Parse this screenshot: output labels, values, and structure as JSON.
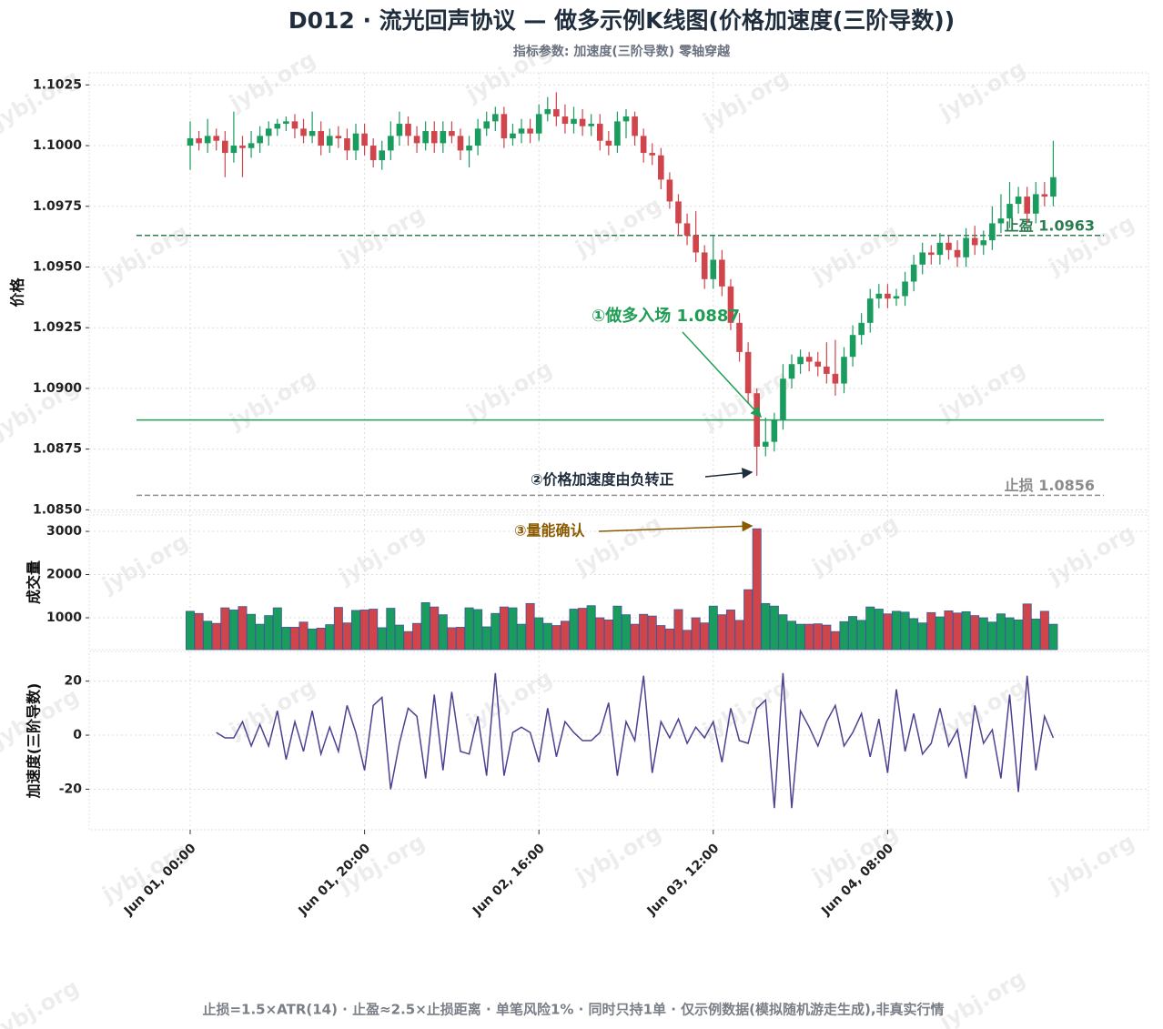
{
  "chart_data": [
    {
      "type": "candlestick",
      "title": "D012 · 流光回声协议 — 做多示例K线图(价格加速度(三阶导数))",
      "subtitle": "指标参数: 加速度(三阶导数) 零轴穿越",
      "footnote": "止损=1.5×ATR(14) · 止盈≈2.5×止损距离 · 单笔风险1% · 同时只持1单 · 仅示例数据(模拟随机游走生成),非真实行情",
      "watermark": "jybj.org",
      "ylabel": "价格",
      "x": [
        "Jun 01, 00:00",
        "Jun 01, 01:00",
        "Jun 01, 02:00",
        "Jun 01, 03:00",
        "Jun 01, 04:00",
        "Jun 01, 05:00",
        "Jun 01, 06:00",
        "Jun 01, 07:00",
        "Jun 01, 08:00",
        "Jun 01, 09:00",
        "Jun 01, 10:00",
        "Jun 01, 11:00",
        "Jun 01, 12:00",
        "Jun 01, 13:00",
        "Jun 01, 14:00",
        "Jun 01, 15:00",
        "Jun 01, 16:00",
        "Jun 01, 17:00",
        "Jun 01, 18:00",
        "Jun 01, 19:00",
        "Jun 01, 20:00",
        "Jun 01, 21:00",
        "Jun 01, 22:00",
        "Jun 01, 23:00",
        "Jun 02, 00:00",
        "Jun 02, 01:00",
        "Jun 02, 02:00",
        "Jun 02, 03:00",
        "Jun 02, 04:00",
        "Jun 02, 05:00",
        "Jun 02, 06:00",
        "Jun 02, 07:00",
        "Jun 02, 08:00",
        "Jun 02, 09:00",
        "Jun 02, 10:00",
        "Jun 02, 11:00",
        "Jun 02, 12:00",
        "Jun 02, 13:00",
        "Jun 02, 14:00",
        "Jun 02, 15:00",
        "Jun 02, 16:00",
        "Jun 02, 17:00",
        "Jun 02, 18:00",
        "Jun 02, 19:00",
        "Jun 02, 20:00",
        "Jun 02, 21:00",
        "Jun 02, 22:00",
        "Jun 02, 23:00",
        "Jun 03, 00:00",
        "Jun 03, 01:00",
        "Jun 03, 02:00",
        "Jun 03, 03:00",
        "Jun 03, 04:00",
        "Jun 03, 05:00",
        "Jun 03, 06:00",
        "Jun 03, 07:00",
        "Jun 03, 08:00",
        "Jun 03, 09:00",
        "Jun 03, 10:00",
        "Jun 03, 11:00",
        "Jun 03, 12:00",
        "Jun 03, 13:00",
        "Jun 03, 14:00",
        "Jun 03, 15:00",
        "Jun 03, 16:00",
        "Jun 03, 17:00",
        "Jun 03, 18:00",
        "Jun 03, 19:00",
        "Jun 03, 20:00",
        "Jun 03, 21:00",
        "Jun 03, 22:00",
        "Jun 03, 23:00",
        "Jun 04, 00:00",
        "Jun 04, 01:00",
        "Jun 04, 02:00",
        "Jun 04, 03:00",
        "Jun 04, 04:00",
        "Jun 04, 05:00",
        "Jun 04, 06:00",
        "Jun 04, 07:00",
        "Jun 04, 08:00",
        "Jun 04, 09:00",
        "Jun 04, 10:00",
        "Jun 04, 11:00",
        "Jun 04, 12:00",
        "Jun 04, 13:00",
        "Jun 04, 14:00",
        "Jun 04, 15:00",
        "Jun 04, 16:00",
        "Jun 04, 17:00",
        "Jun 04, 18:00",
        "Jun 04, 19:00",
        "Jun 04, 20:00",
        "Jun 04, 21:00",
        "Jun 04, 22:00",
        "Jun 04, 23:00",
        "Jun 05, 00:00",
        "Jun 05, 01:00",
        "Jun 05, 02:00",
        "Jun 05, 03:00"
      ],
      "xticks": [
        "Jun 01, 00:00",
        "Jun 01, 20:00",
        "Jun 02, 16:00",
        "Jun 03, 12:00",
        "Jun 04, 08:00"
      ],
      "open": [
        1.1,
        1.1003,
        1.1001,
        1.1004,
        1.1002,
        1.0997,
        1.1,
        1.0999,
        1.1001,
        1.1004,
        1.1007,
        1.1009,
        1.101,
        1.1007,
        1.1004,
        1.1006,
        1.1,
        1.1004,
        1.1003,
        1.0998,
        1.1005,
        1.1,
        1.0994,
        1.0998,
        1.1004,
        1.1009,
        1.1004,
        1.1001,
        1.1006,
        1.1001,
        1.1006,
        1.1004,
        1.0998,
        1.1,
        1.1007,
        1.101,
        1.1013,
        1.1003,
        1.1005,
        1.1007,
        1.1005,
        1.1013,
        1.1015,
        1.1012,
        1.1009,
        1.1011,
        1.1008,
        1.1009,
        1.1002,
        1.1,
        1.101,
        1.1012,
        1.1004,
        1.0997,
        1.0996,
        1.0986,
        1.0977,
        1.0968,
        1.0963,
        1.0956,
        1.0945,
        1.0953,
        1.0942,
        1.0927,
        1.0915,
        1.0898,
        1.0876,
        1.0878,
        1.0887,
        1.0904,
        1.091,
        1.0913,
        1.0911,
        1.0909,
        1.0906,
        1.0902,
        1.0913,
        1.0922,
        1.0927,
        1.0937,
        1.0939,
        1.0937,
        1.0938,
        1.0944,
        1.0951,
        1.0956,
        1.0955,
        1.096,
        1.0957,
        1.0954,
        1.0962,
        1.0959,
        1.0961,
        1.0968,
        1.097,
        1.0976,
        1.0979,
        1.0972,
        1.098,
        1.0979
      ],
      "high": [
        1.101,
        1.1006,
        1.1011,
        1.1007,
        1.1006,
        1.1014,
        1.1004,
        1.1006,
        1.1008,
        1.101,
        1.1011,
        1.1012,
        1.1013,
        1.1011,
        1.1014,
        1.101,
        1.1007,
        1.1008,
        1.1007,
        1.1009,
        1.1009,
        1.1003,
        1.1002,
        1.101,
        1.1014,
        1.1012,
        1.1008,
        1.101,
        1.101,
        1.101,
        1.101,
        1.1007,
        1.1004,
        1.1011,
        1.1014,
        1.1016,
        1.1016,
        1.1009,
        1.1011,
        1.1011,
        1.1017,
        1.102,
        1.1022,
        1.1017,
        1.1016,
        1.1015,
        1.1013,
        1.1013,
        1.1006,
        1.1014,
        1.1015,
        1.1014,
        1.1007,
        1.1001,
        1.0999,
        1.0989,
        1.098,
        1.0972,
        1.0973,
        1.0959,
        1.0963,
        1.0957,
        1.0945,
        1.0931,
        1.0919,
        1.09,
        1.0888,
        1.089,
        1.091,
        1.0914,
        1.0916,
        1.0915,
        1.0915,
        1.0919,
        1.092,
        1.0917,
        1.0926,
        1.0931,
        1.0941,
        1.0943,
        1.0943,
        1.0941,
        1.0948,
        1.0955,
        1.096,
        1.0959,
        1.0964,
        1.0963,
        1.0961,
        1.0966,
        1.0967,
        1.0965,
        1.0975,
        1.098,
        1.0985,
        1.0983,
        1.0983,
        1.0985,
        1.0985,
        1.1002
      ],
      "low": [
        1.099,
        1.0998,
        1.0997,
        1.0998,
        1.0987,
        1.0993,
        1.0987,
        1.0995,
        1.0997,
        1.1,
        1.1004,
        1.1006,
        1.1003,
        1.1001,
        1.1001,
        1.0996,
        1.0997,
        1.0999,
        1.0994,
        1.0994,
        1.0996,
        1.0991,
        1.099,
        1.0994,
        1.1,
        1.1,
        1.0997,
        1.0998,
        1.0997,
        1.0997,
        1.1001,
        1.0994,
        1.0991,
        1.0996,
        1.1004,
        1.1006,
        1.0999,
        1.1,
        1.1001,
        1.1001,
        1.1002,
        1.101,
        1.1008,
        1.1005,
        1.1005,
        1.1004,
        1.1004,
        1.0998,
        1.0996,
        1.0997,
        1.1003,
        1.1,
        1.0993,
        1.0992,
        1.0982,
        1.0974,
        1.0963,
        1.0959,
        1.0952,
        1.0941,
        1.0941,
        1.0938,
        1.0924,
        1.0911,
        1.0894,
        1.0864,
        1.0872,
        1.0874,
        1.0883,
        1.09,
        1.0906,
        1.0907,
        1.0905,
        1.0902,
        1.0897,
        1.0898,
        1.0909,
        1.0918,
        1.0923,
        1.0933,
        1.0933,
        1.0934,
        1.0934,
        1.094,
        1.0947,
        1.0951,
        1.0951,
        1.0953,
        1.095,
        1.095,
        1.0955,
        1.0955,
        1.0957,
        1.0964,
        1.0966,
        1.0972,
        1.0968,
        1.0968,
        1.0975,
        1.0975
      ],
      "close": [
        1.1003,
        1.1001,
        1.1004,
        1.1002,
        1.0997,
        1.1,
        1.0999,
        1.1001,
        1.1004,
        1.1007,
        1.1009,
        1.101,
        1.1007,
        1.1004,
        1.1006,
        1.1,
        1.1004,
        1.1003,
        1.0998,
        1.1005,
        1.1,
        1.0994,
        1.0998,
        1.1004,
        1.1009,
        1.1004,
        1.1001,
        1.1006,
        1.1001,
        1.1006,
        1.1004,
        1.0998,
        1.1,
        1.1007,
        1.101,
        1.1013,
        1.1003,
        1.1005,
        1.1007,
        1.1005,
        1.1013,
        1.1015,
        1.1012,
        1.1009,
        1.1011,
        1.1008,
        1.1009,
        1.1002,
        1.1,
        1.101,
        1.1012,
        1.1004,
        1.0997,
        1.0996,
        1.0986,
        1.0977,
        1.0968,
        1.0963,
        1.0956,
        1.0945,
        1.0953,
        1.0942,
        1.0927,
        1.0915,
        1.0898,
        1.0876,
        1.0878,
        1.0887,
        1.0904,
        1.091,
        1.0913,
        1.0911,
        1.0909,
        1.0906,
        1.0902,
        1.0913,
        1.0922,
        1.0927,
        1.0937,
        1.0939,
        1.0937,
        1.0938,
        1.0944,
        1.0951,
        1.0956,
        1.0955,
        1.096,
        1.0957,
        1.0954,
        1.0962,
        1.0959,
        1.0961,
        1.0968,
        1.097,
        1.0976,
        1.0979,
        1.0972,
        1.098,
        1.0979,
        1.0987
      ],
      "up_color": "#1a9c5e",
      "down_color": "#d0454c",
      "ylim": [
        1.0849,
        1.103
      ],
      "yticks": [
        {
          "value": 1.085,
          "label": "1.0850"
        },
        1.0875,
        {
          "value": 1.09,
          "label": "1.0900"
        },
        1.0925,
        {
          "value": 1.095,
          "label": "1.0950"
        },
        1.0975,
        {
          "value": 1.1,
          "label": "1.1000"
        },
        1.1025
      ],
      "grid": true,
      "levels": [
        {
          "label": "止盈 1.0963",
          "value": 1.0963,
          "color": "#2e7d52",
          "dashed": true
        },
        {
          "value": 1.0887,
          "color": "#1f9d55",
          "dashed": false
        },
        {
          "label": "止损 1.0856",
          "value": 1.0856,
          "color": "#8c8c8c",
          "dashed": true
        }
      ],
      "annotations": [
        {
          "text": "①做多入场 1.0887",
          "color": "#1f9d55"
        },
        {
          "text": "②价格加速度由负转正",
          "color": "#1f2d3d"
        },
        {
          "text": "③量能确认",
          "color": "#8a5a00"
        }
      ]
    },
    {
      "type": "bar",
      "ylabel": "成交量",
      "values": [
        1150,
        1100,
        920,
        870,
        1230,
        1180,
        1260,
        1080,
        850,
        1050,
        1230,
        780,
        780,
        900,
        740,
        760,
        840,
        1240,
        880,
        1170,
        1180,
        1200,
        770,
        1220,
        830,
        680,
        870,
        1350,
        1250,
        1070,
        770,
        780,
        1230,
        1190,
        790,
        1100,
        1250,
        1230,
        850,
        1330,
        1000,
        870,
        820,
        920,
        1200,
        1220,
        1280,
        1000,
        950,
        1270,
        1070,
        850,
        1080,
        1040,
        820,
        740,
        1190,
        710,
        1000,
        880,
        1270,
        1070,
        1180,
        940,
        1650,
        3060,
        1330,
        1270,
        1070,
        920,
        850,
        850,
        860,
        830,
        680,
        910,
        1030,
        940,
        1250,
        1200,
        1090,
        1150,
        1130,
        980,
        880,
        1120,
        1020,
        1160,
        1110,
        1140,
        1050,
        1000,
        900,
        1090,
        1000,
        950,
        1320,
        970,
        1150,
        850
      ],
      "edge_color": "#3b5a9a",
      "ylim": [
        263,
        3380
      ],
      "yticks": [
        1000,
        2000,
        3000
      ],
      "grid": true
    },
    {
      "type": "line",
      "ylabel": "加速度(三阶导数)",
      "color": "#4b4291",
      "values": [
        null,
        null,
        null,
        1,
        -1,
        -1,
        5,
        -4,
        4,
        -4,
        9,
        -9,
        5,
        -6,
        9,
        -7,
        3,
        -6,
        11,
        1,
        -13,
        11,
        14,
        -20,
        -3,
        10,
        7,
        -16,
        15,
        -13,
        16,
        -6,
        -7,
        7,
        -15,
        23,
        -15,
        1,
        3,
        1,
        -10,
        10,
        -8,
        5,
        1,
        -2,
        -2,
        1,
        12,
        -15,
        5,
        -2,
        22,
        -14,
        5,
        -1,
        6,
        -3,
        3,
        -1,
        5,
        -10,
        10,
        -2,
        -3,
        10,
        13,
        -27,
        23,
        -27,
        9,
        3,
        -4,
        5,
        11,
        -4,
        1,
        8,
        -8,
        6,
        -14,
        17,
        -6,
        8,
        -7,
        -3,
        10,
        -4,
        2,
        -16,
        11,
        -3,
        2,
        -16,
        15,
        -21,
        22,
        -13,
        7,
        -1
      ],
      "ylim": [
        -35,
        31
      ],
      "yticks": [
        -20,
        0,
        20
      ],
      "grid": true
    }
  ]
}
